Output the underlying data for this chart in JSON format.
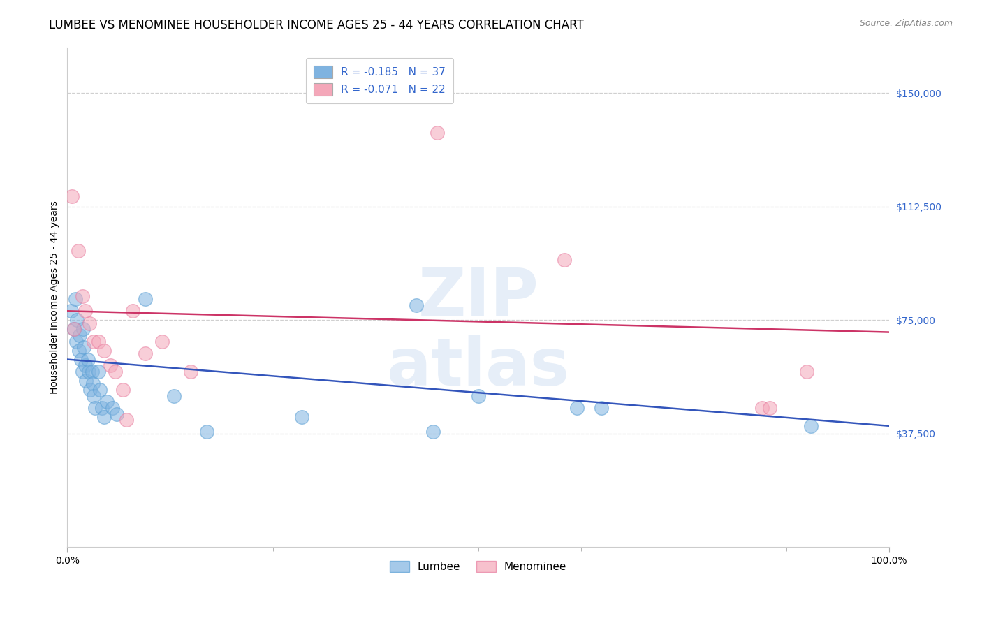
{
  "title": "LUMBEE VS MENOMINEE HOUSEHOLDER INCOME AGES 25 - 44 YEARS CORRELATION CHART",
  "source": "Source: ZipAtlas.com",
  "ylabel": "Householder Income Ages 25 - 44 years",
  "xlim": [
    0,
    1.0
  ],
  "ylim": [
    0,
    165000
  ],
  "yticks": [
    37500,
    75000,
    112500,
    150000
  ],
  "ytick_labels": [
    "$37,500",
    "$75,000",
    "$112,500",
    "$150,000"
  ],
  "xtick_labels": [
    "0.0%",
    "100.0%"
  ],
  "background_color": "#ffffff",
  "lumbee_color": "#7fb3e0",
  "menominee_color": "#f4a7b9",
  "lumbee_edge_color": "#5a9fd4",
  "menominee_edge_color": "#e87da0",
  "lumbee_label": "Lumbee",
  "menominee_label": "Menominee",
  "lumbee_R": "-0.185",
  "lumbee_N": "37",
  "menominee_R": "-0.071",
  "menominee_N": "22",
  "lumbee_x": [
    0.005,
    0.008,
    0.01,
    0.011,
    0.012,
    0.014,
    0.015,
    0.017,
    0.018,
    0.019,
    0.02,
    0.022,
    0.023,
    0.025,
    0.026,
    0.028,
    0.03,
    0.031,
    0.032,
    0.034,
    0.038,
    0.04,
    0.042,
    0.045,
    0.048,
    0.055,
    0.06,
    0.095,
    0.13,
    0.17,
    0.285,
    0.425,
    0.445,
    0.5,
    0.62,
    0.65,
    0.905
  ],
  "lumbee_y": [
    78000,
    72000,
    82000,
    68000,
    75000,
    65000,
    70000,
    62000,
    58000,
    72000,
    66000,
    60000,
    55000,
    62000,
    58000,
    52000,
    58000,
    54000,
    50000,
    46000,
    58000,
    52000,
    46000,
    43000,
    48000,
    46000,
    44000,
    82000,
    50000,
    38000,
    43000,
    80000,
    38000,
    50000,
    46000,
    46000,
    40000
  ],
  "menominee_x": [
    0.006,
    0.008,
    0.013,
    0.018,
    0.022,
    0.027,
    0.032,
    0.038,
    0.045,
    0.052,
    0.058,
    0.068,
    0.072,
    0.08,
    0.095,
    0.115,
    0.15,
    0.45,
    0.605,
    0.845,
    0.855,
    0.9
  ],
  "menominee_y": [
    116000,
    72000,
    98000,
    83000,
    78000,
    74000,
    68000,
    68000,
    65000,
    60000,
    58000,
    52000,
    42000,
    78000,
    64000,
    68000,
    58000,
    137000,
    95000,
    46000,
    46000,
    58000
  ],
  "lumbee_trend_x": [
    0.0,
    1.0
  ],
  "lumbee_trend_y": [
    62000,
    40000
  ],
  "menominee_trend_x": [
    0.0,
    1.0
  ],
  "menominee_trend_y": [
    78000,
    71000
  ],
  "watermark_line1": "ZIP",
  "watermark_line2": "atlas",
  "title_fontsize": 12,
  "axis_label_fontsize": 10,
  "tick_fontsize": 10,
  "ytick_color": "#3366cc",
  "xtick_color": "#333333",
  "grid_color": "#d0d0d0",
  "trend_blue": "#3355bb",
  "trend_pink": "#cc3366"
}
